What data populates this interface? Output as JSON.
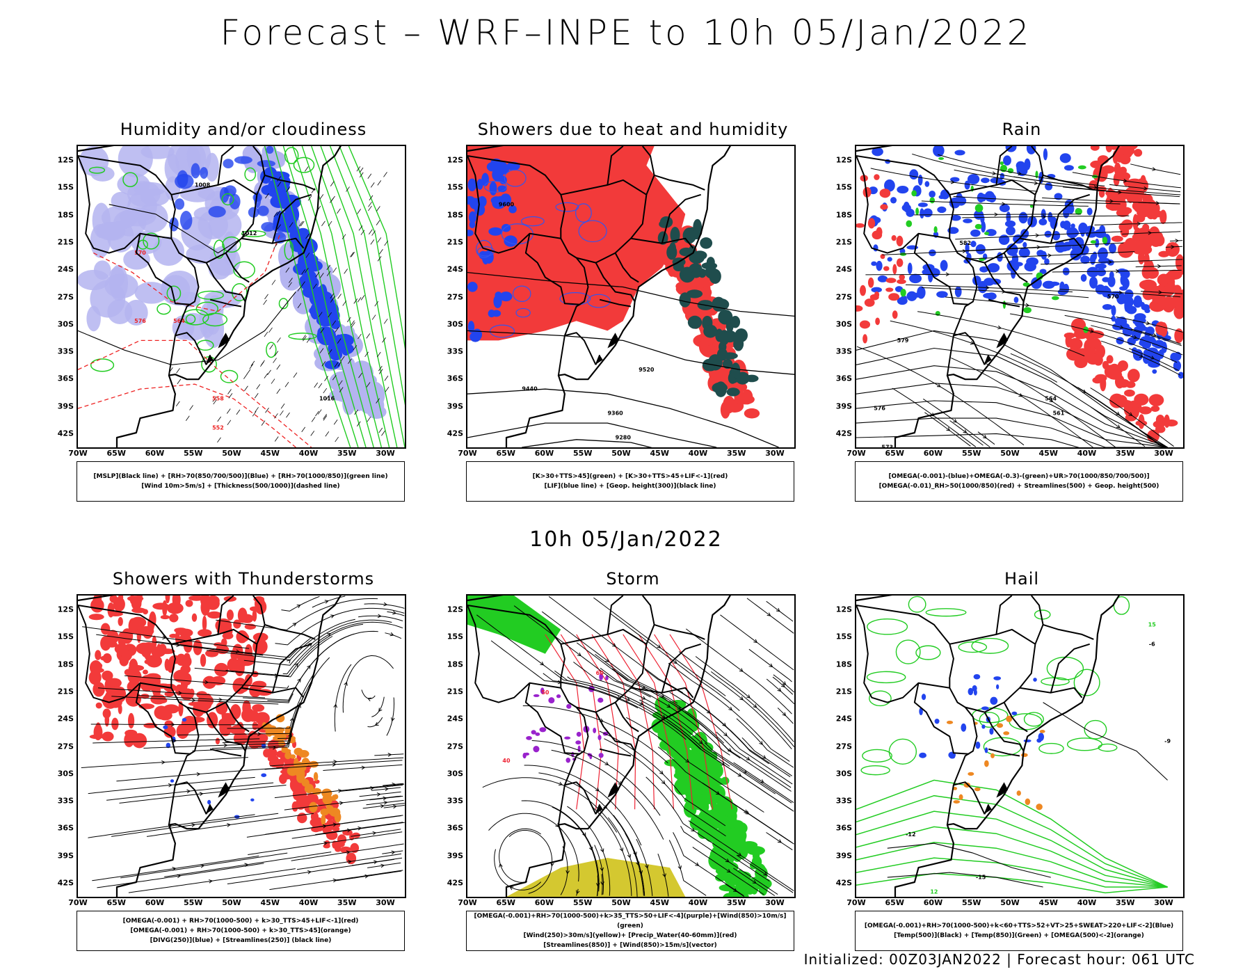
{
  "title": "Forecast – WRF–INPE to 10h 05/Jan/2022",
  "mid_title": "10h 05/Jan/2022",
  "footer": "Initialized: 00Z03JAN2022 | Forecast hour: 061 UTC",
  "axes": {
    "lat": [
      "12S",
      "15S",
      "18S",
      "21S",
      "24S",
      "27S",
      "30S",
      "33S",
      "36S",
      "39S",
      "42S"
    ],
    "lon": [
      "70W",
      "65W",
      "60W",
      "55W",
      "50W",
      "45W",
      "40W",
      "35W",
      "30W"
    ]
  },
  "colors": {
    "red": "#f23a3a",
    "blue": "#2244ee",
    "light_blue": "#b4b4f0",
    "green": "#22cc22",
    "dark_green": "#1f4d4d",
    "orange": "#ee8822",
    "purple": "#9922cc",
    "yellow": "#d4c830"
  },
  "panels": [
    {
      "title": "Humidity and/or cloudiness",
      "legend": [
        "[MSLP](Black line) + [RH>70(850/700/500)](Blue) + [RH>70(1000/850)](green line)",
        "[Wind 10m>5m/s] + [Thickness(500/1000)](dashed line)"
      ],
      "contour_labels": [
        "1008",
        "1012",
        "1016",
        "576",
        "570",
        "564",
        "558",
        "552"
      ]
    },
    {
      "title": "Showers due to heat and humidity",
      "legend": [
        "[K>30+TTS>45](green) + [K>30+TTS>45+LIF<-1](red)",
        "[LIF](blue line) + [Geop. height(300)](black line)"
      ],
      "contour_labels": [
        "9600",
        "9520",
        "9440",
        "9360",
        "9280"
      ]
    },
    {
      "title": "Rain",
      "legend": [
        "[OMEGA(-0.001)-(blue)+OMEGA(-0.3)-(green)+UR>70(1000/850/700/500)]",
        "[OMEGA(-0.01)_RH>50(1000/850)(red) + Streamlines(500) + Geop. height(500)"
      ],
      "contour_labels": [
        "582",
        "579",
        "576",
        "573",
        "570",
        "564",
        "561"
      ]
    },
    {
      "title": "Showers with Thunderstorms",
      "legend": [
        "[OMEGA(-0.001) + RH>70(1000-500) + k>30_TTS>45+LIF<-1](red)",
        "[OMEGA(-0.001) + RH>70(1000-500) + k>30_TTS>45](orange)",
        "[DIVG(250)](blue) + [Streamlines(250)] (black line)"
      ],
      "contour_labels": []
    },
    {
      "title": "Storm",
      "legend": [
        "[OMEGA(-0.001)+RH>70(1000-500)+k>35_TTS>50+LIF<-4](purple)+[Wind(850)>10m/s](green)",
        "[Wind(250)>30m/s](yellow)+ [Precip_Water(40-60mm)](red)",
        "[Streamlines(850)] + [Wind(850)>15m/s](vector)"
      ],
      "contour_labels": [
        "40",
        "50",
        "60"
      ]
    },
    {
      "title": "Hail",
      "legend": [
        "[OMEGA(-0.001)+RH>70(1000-500)+k<60+TTS>52+VT>25+SWEAT>220+LIF<-2](Blue)",
        "[Temp(500)](Black) + [Temp(850)](Green) + [OMEGA(500)<-2](orange)"
      ],
      "contour_labels": [
        "-6",
        "-9",
        "-12",
        "-15",
        "15",
        "12"
      ]
    }
  ]
}
